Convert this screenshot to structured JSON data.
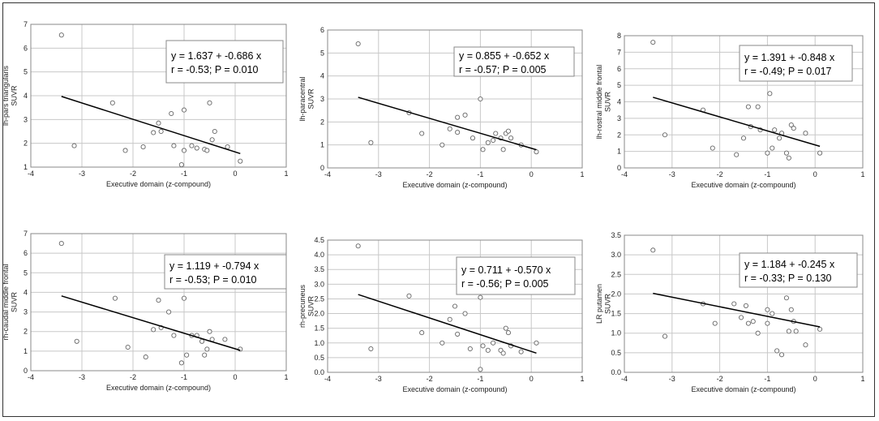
{
  "chart_data": [
    {
      "type": "scatter",
      "xlabel": "Executive domain (z-compound)",
      "ylabel": "lh-pars triangularis SUVR",
      "xlim": [
        -4,
        1
      ],
      "ylim": [
        1,
        7
      ],
      "xticks": [
        -4,
        -3,
        -2,
        -1,
        0,
        1
      ],
      "yticks": [
        1,
        2,
        3,
        4,
        5,
        6,
        7
      ],
      "grid": true,
      "equation": "y = 1.637  +  -0.686  x",
      "stats": "r = -0.53; P = 0.010",
      "regression": {
        "intercept": 1.637,
        "slope": -0.686,
        "x_range": [
          -3.4,
          0.1
        ]
      },
      "points": [
        [
          -3.4,
          6.55
        ],
        [
          -3.15,
          1.9
        ],
        [
          -2.4,
          3.7
        ],
        [
          -2.15,
          1.7
        ],
        [
          -1.8,
          1.85
        ],
        [
          -1.6,
          2.45
        ],
        [
          -1.5,
          2.85
        ],
        [
          -1.45,
          2.5
        ],
        [
          -1.25,
          3.25
        ],
        [
          -1.2,
          1.9
        ],
        [
          -1.05,
          1.1
        ],
        [
          -1.0,
          3.4
        ],
        [
          -1.0,
          1.7
        ],
        [
          -0.85,
          1.9
        ],
        [
          -0.75,
          1.8
        ],
        [
          -0.6,
          1.75
        ],
        [
          -0.55,
          1.7
        ],
        [
          -0.5,
          3.7
        ],
        [
          -0.45,
          2.15
        ],
        [
          -0.4,
          2.5
        ],
        [
          -0.15,
          1.85
        ],
        [
          0.1,
          1.25
        ]
      ]
    },
    {
      "type": "scatter",
      "xlabel": "Executive domain (z-compound)",
      "ylabel": "lh-paracentral SUVR",
      "xlim": [
        -4,
        1
      ],
      "ylim": [
        0,
        6
      ],
      "xticks": [
        -4,
        -3,
        -2,
        -1,
        0,
        1
      ],
      "yticks": [
        0,
        1,
        2,
        3,
        4,
        5,
        6
      ],
      "grid": true,
      "equation": "y = 0.855  +  -0.652  x",
      "stats": "r = -0.57; P = 0.005",
      "regression": {
        "intercept": 0.855,
        "slope": -0.652,
        "x_range": [
          -3.4,
          0.1
        ]
      },
      "points": [
        [
          -3.4,
          5.4
        ],
        [
          -3.15,
          1.1
        ],
        [
          -2.4,
          2.4
        ],
        [
          -2.15,
          1.5
        ],
        [
          -1.75,
          1.0
        ],
        [
          -1.6,
          1.7
        ],
        [
          -1.45,
          1.55
        ],
        [
          -1.45,
          2.2
        ],
        [
          -1.3,
          2.3
        ],
        [
          -1.15,
          1.3
        ],
        [
          -1.0,
          3.0
        ],
        [
          -0.95,
          0.8
        ],
        [
          -0.85,
          1.1
        ],
        [
          -0.75,
          1.2
        ],
        [
          -0.7,
          1.5
        ],
        [
          -0.6,
          1.3
        ],
        [
          -0.55,
          0.8
        ],
        [
          -0.5,
          1.5
        ],
        [
          -0.45,
          1.6
        ],
        [
          -0.4,
          1.3
        ],
        [
          -0.2,
          1.0
        ],
        [
          0.1,
          0.7
        ]
      ]
    },
    {
      "type": "scatter",
      "xlabel": "Executive domain (z-compound)",
      "ylabel": "lh-rostral middle frontal SUVR",
      "xlim": [
        -4,
        1
      ],
      "ylim": [
        0,
        8
      ],
      "xticks": [
        -4,
        -3,
        -2,
        -1,
        0,
        1
      ],
      "yticks": [
        0,
        1,
        2,
        3,
        4,
        5,
        6,
        7,
        8
      ],
      "grid": true,
      "equation": "y = 1.391  +  -0.848  x",
      "stats": "r = -0.49; P = 0.017",
      "regression": {
        "intercept": 1.391,
        "slope": -0.848,
        "x_range": [
          -3.4,
          0.1
        ]
      },
      "points": [
        [
          -3.4,
          7.6
        ],
        [
          -3.15,
          2.0
        ],
        [
          -2.35,
          3.5
        ],
        [
          -2.15,
          1.2
        ],
        [
          -1.65,
          0.8
        ],
        [
          -1.5,
          1.8
        ],
        [
          -1.4,
          3.7
        ],
        [
          -1.35,
          2.5
        ],
        [
          -1.2,
          3.7
        ],
        [
          -1.15,
          2.3
        ],
        [
          -1.0,
          0.9
        ],
        [
          -0.95,
          4.5
        ],
        [
          -0.9,
          1.2
        ],
        [
          -0.85,
          2.3
        ],
        [
          -0.75,
          1.8
        ],
        [
          -0.7,
          2.1
        ],
        [
          -0.6,
          0.9
        ],
        [
          -0.55,
          0.6
        ],
        [
          -0.5,
          2.6
        ],
        [
          -0.45,
          2.4
        ],
        [
          -0.2,
          2.1
        ],
        [
          0.1,
          0.9
        ]
      ]
    },
    {
      "type": "scatter",
      "xlabel": "Executive domain (z-compound)",
      "ylabel": "rh-caudal middle frontal SUVR",
      "xlim": [
        -4,
        1
      ],
      "ylim": [
        0,
        7
      ],
      "xticks": [
        -4,
        -3,
        -2,
        -1,
        0,
        1
      ],
      "yticks": [
        0,
        1,
        2,
        3,
        4,
        5,
        6,
        7
      ],
      "grid": true,
      "equation": "y = 1.119  +  -0.794  x",
      "stats": "r = -0.53; P = 0.010",
      "regression": {
        "intercept": 1.119,
        "slope": -0.794,
        "x_range": [
          -3.4,
          0.1
        ]
      },
      "points": [
        [
          -3.4,
          6.5
        ],
        [
          -3.1,
          1.5
        ],
        [
          -2.35,
          3.7
        ],
        [
          -2.1,
          1.2
        ],
        [
          -1.75,
          0.7
        ],
        [
          -1.6,
          2.1
        ],
        [
          -1.5,
          3.6
        ],
        [
          -1.45,
          2.2
        ],
        [
          -1.3,
          3.0
        ],
        [
          -1.2,
          1.8
        ],
        [
          -1.05,
          0.4
        ],
        [
          -1.0,
          3.7
        ],
        [
          -0.95,
          0.8
        ],
        [
          -0.85,
          1.8
        ],
        [
          -0.75,
          1.8
        ],
        [
          -0.65,
          1.5
        ],
        [
          -0.6,
          0.8
        ],
        [
          -0.55,
          1.1
        ],
        [
          -0.5,
          2.0
        ],
        [
          -0.45,
          1.6
        ],
        [
          -0.2,
          1.6
        ],
        [
          0.1,
          1.1
        ]
      ]
    },
    {
      "type": "scatter",
      "xlabel": "Executive domain (z-compound)",
      "ylabel": "rh-precuneus SUVR",
      "xlim": [
        -4,
        1
      ],
      "ylim": [
        0,
        4.5
      ],
      "xticks": [
        -4,
        -3,
        -2,
        -1,
        0,
        1
      ],
      "yticks": [
        0,
        0.5,
        1,
        1.5,
        2,
        2.5,
        3,
        3.5,
        4,
        4.5
      ],
      "ytick_labels": [
        "0.0",
        "0.5",
        "1.0",
        "1.5",
        "2.0",
        "2.5",
        "3.0",
        "3.5",
        "4.0",
        "4.5"
      ],
      "grid": true,
      "equation": "y = 0.711  +  -0.570  x",
      "stats": "r = -0.56; P = 0.005",
      "regression": {
        "intercept": 0.711,
        "slope": -0.57,
        "x_range": [
          -3.4,
          0.1
        ]
      },
      "points": [
        [
          -3.4,
          4.3
        ],
        [
          -3.15,
          0.8
        ],
        [
          -2.4,
          2.6
        ],
        [
          -2.15,
          1.35
        ],
        [
          -1.75,
          1.0
        ],
        [
          -1.6,
          1.8
        ],
        [
          -1.5,
          2.25
        ],
        [
          -1.45,
          1.3
        ],
        [
          -1.3,
          2.0
        ],
        [
          -1.2,
          0.8
        ],
        [
          -1.0,
          2.55
        ],
        [
          -1.0,
          0.1
        ],
        [
          -0.95,
          0.9
        ],
        [
          -0.85,
          0.75
        ],
        [
          -0.75,
          1.0
        ],
        [
          -0.6,
          0.75
        ],
        [
          -0.55,
          0.65
        ],
        [
          -0.5,
          1.5
        ],
        [
          -0.45,
          1.35
        ],
        [
          -0.4,
          0.9
        ],
        [
          -0.2,
          0.7
        ],
        [
          0.1,
          1.0
        ]
      ]
    },
    {
      "type": "scatter",
      "xlabel": "Executive domain (z-compound)",
      "ylabel": "LR putamen SUVR",
      "xlim": [
        -4,
        1
      ],
      "ylim": [
        0,
        3.5
      ],
      "xticks": [
        -4,
        -3,
        -2,
        -1,
        0,
        1
      ],
      "yticks": [
        0,
        0.5,
        1,
        1.5,
        2,
        2.5,
        3,
        3.5
      ],
      "ytick_labels": [
        "0.0",
        "0.5",
        "1.0",
        "1.5",
        "2.0",
        "2.5",
        "3.0",
        "3.5"
      ],
      "grid": true,
      "equation": "y = 1.184  +  -0.245  x",
      "stats": "r = -0.33; P = 0.130",
      "regression": {
        "intercept": 1.184,
        "slope": -0.245,
        "x_range": [
          -3.4,
          0.1
        ]
      },
      "points": [
        [
          -3.4,
          3.12
        ],
        [
          -3.15,
          0.92
        ],
        [
          -2.35,
          1.75
        ],
        [
          -2.1,
          1.25
        ],
        [
          -1.7,
          1.75
        ],
        [
          -1.55,
          1.4
        ],
        [
          -1.45,
          1.7
        ],
        [
          -1.4,
          1.25
        ],
        [
          -1.3,
          1.3
        ],
        [
          -1.2,
          1.0
        ],
        [
          -1.0,
          1.6
        ],
        [
          -1.0,
          1.25
        ],
        [
          -0.9,
          1.5
        ],
        [
          -0.8,
          0.55
        ],
        [
          -0.7,
          0.45
        ],
        [
          -0.6,
          1.9
        ],
        [
          -0.55,
          1.05
        ],
        [
          -0.5,
          1.6
        ],
        [
          -0.45,
          1.3
        ],
        [
          -0.4,
          1.05
        ],
        [
          -0.2,
          0.7
        ],
        [
          0.1,
          1.1
        ]
      ]
    }
  ]
}
